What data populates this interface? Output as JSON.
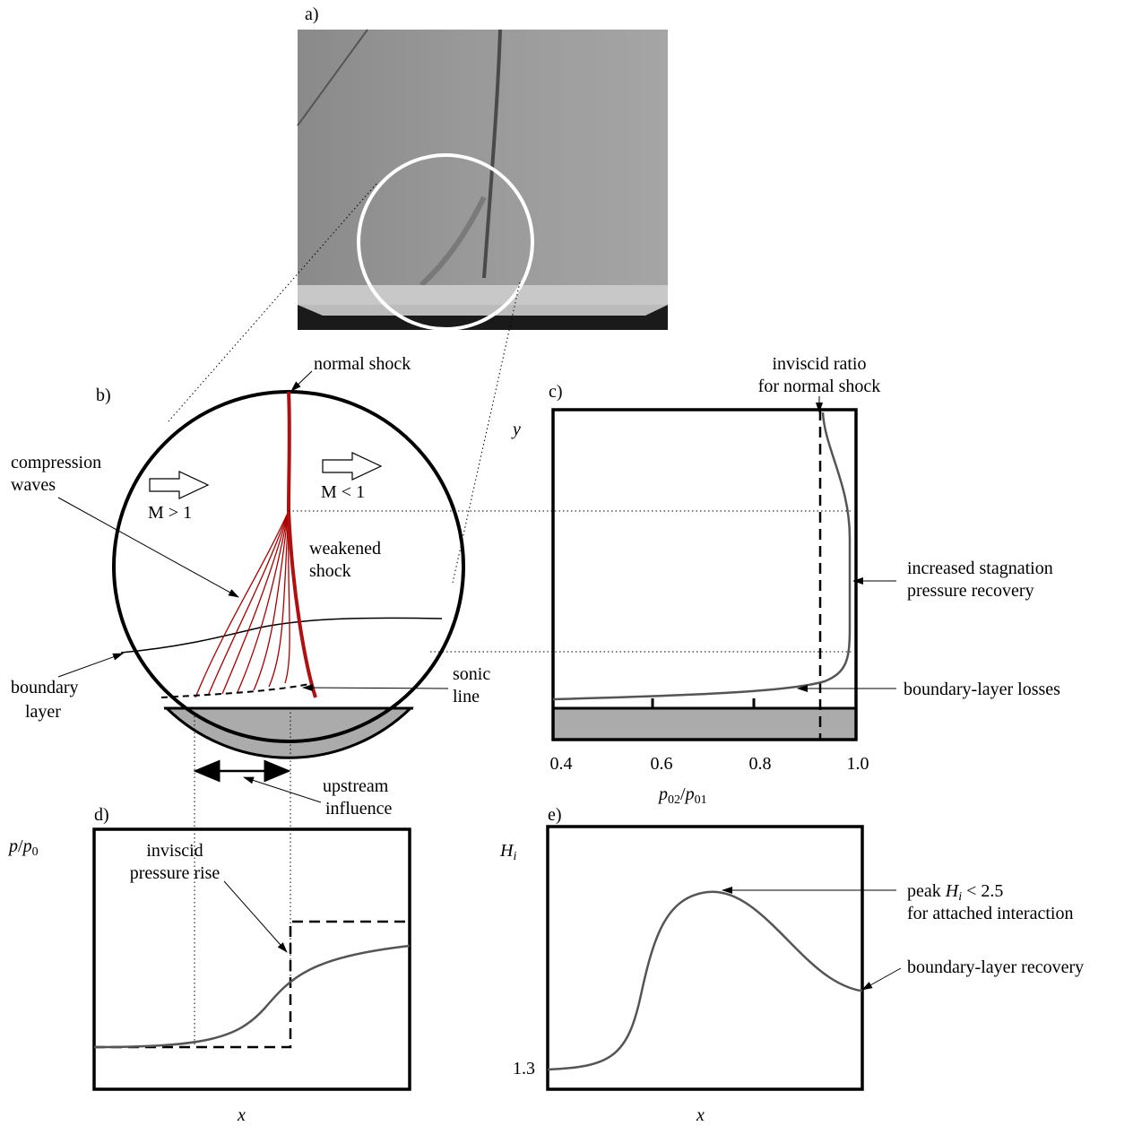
{
  "a": {
    "label": "a)"
  },
  "b": {
    "label": "b)",
    "normal_shock": "normal shock",
    "compression_waves": [
      "compression",
      "waves"
    ],
    "m_gt_1": "M > 1",
    "m_lt_1": "M < 1",
    "weakened_shock": [
      "weakened",
      "shock"
    ],
    "boundary_layer": [
      "boundary",
      "layer"
    ],
    "sonic_line": [
      "sonic",
      "line"
    ],
    "upstream_influence": [
      "upstream",
      "influence"
    ]
  },
  "c": {
    "label": "c)",
    "y_axis": "y",
    "inviscid_ratio": [
      "inviscid ratio",
      "for normal shock"
    ],
    "increased_recovery": [
      "increased stagnation",
      "pressure recovery"
    ],
    "bl_losses": "boundary-layer losses",
    "x_ticks": [
      "0.4",
      "0.6",
      "0.8",
      "1.0"
    ],
    "x_axis": [
      "p",
      "02",
      "/",
      "p",
      "01"
    ]
  },
  "d": {
    "label": "d)",
    "y_axis": [
      "p",
      "/",
      "p",
      "0"
    ],
    "inviscid_rise": [
      "inviscid",
      "pressure rise"
    ],
    "x_axis": "x"
  },
  "e": {
    "label": "e)",
    "y_axis": [
      "H",
      "i"
    ],
    "peak": [
      [
        "peak ",
        "H",
        "i",
        " < 2.5"
      ],
      "for attached interaction"
    ],
    "bl_recovery": "boundary-layer recovery",
    "y_tick": "1.3",
    "x_axis": "x"
  }
}
